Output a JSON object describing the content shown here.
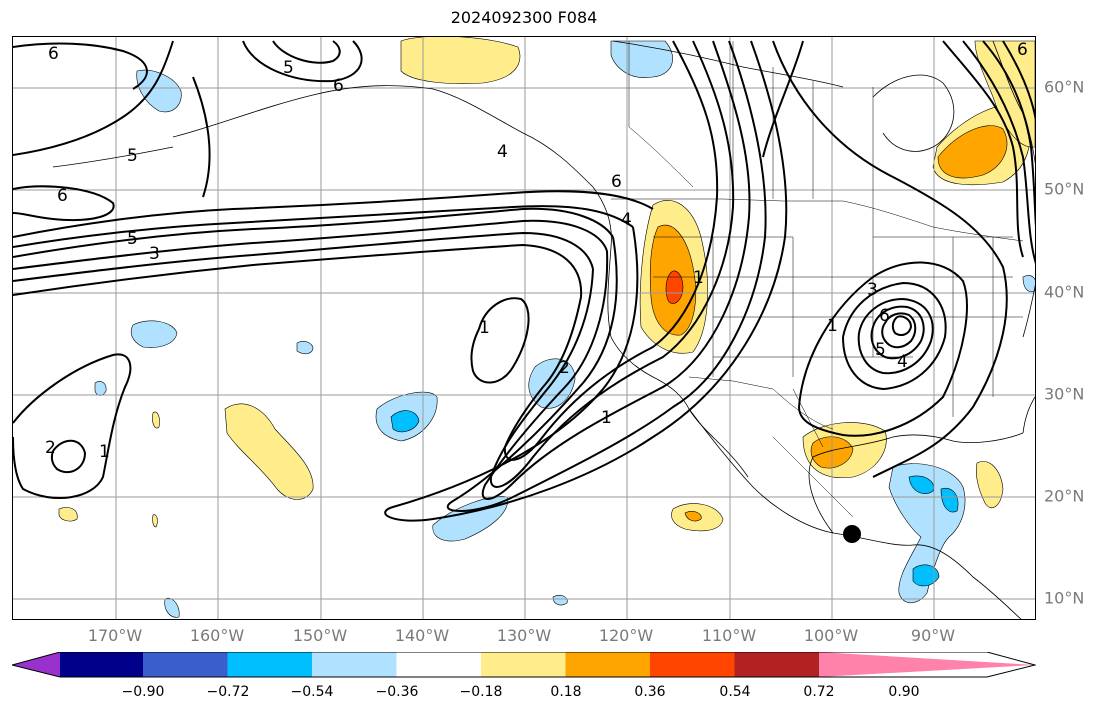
{
  "title": "2024092300 F084",
  "lon_labels": [
    "170°W",
    "160°W",
    "150°W",
    "140°W",
    "130°W",
    "120°W",
    "110°W",
    "100°W",
    "90°W"
  ],
  "lat_labels": [
    "60°N",
    "50°N",
    "40°N",
    "30°N",
    "20°N",
    "10°N"
  ],
  "colorbar": {
    "tick_labels": [
      "−0.90",
      "−0.72",
      "−0.54",
      "−0.36",
      "−0.18",
      "0.18",
      "0.36",
      "0.54",
      "0.72",
      "0.90"
    ],
    "colors": [
      "#9932cc",
      "#00008b",
      "#3a5fcd",
      "#00bfff",
      "#b0e2ff",
      "#ffffff",
      "#ffec8b",
      "#ffa500",
      "#ff4500",
      "#b22222",
      "#ff82ab"
    ]
  },
  "contour_labels": [
    "6",
    "5",
    "6",
    "5",
    "6",
    "5",
    "3",
    "6",
    "4",
    "4",
    "1",
    "2",
    "1",
    "1",
    "2",
    "1",
    "1",
    "3",
    "5",
    "4",
    "6",
    "6"
  ],
  "marker": "black dot near 16°N 98°W"
}
